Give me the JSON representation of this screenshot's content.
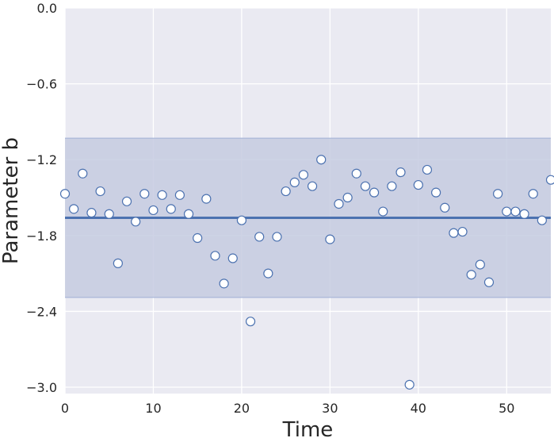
{
  "chart_data": {
    "type": "scatter",
    "xlabel": "Time",
    "ylabel": "Parameter b",
    "xlim": [
      0,
      55
    ],
    "ylim": [
      -3.05,
      0
    ],
    "x_ticks": [
      "0",
      "10",
      "20",
      "30",
      "40",
      "50"
    ],
    "x_tick_values": [
      0,
      10,
      20,
      30,
      40,
      50
    ],
    "y_ticks": [
      "0.0",
      "−0.6",
      "−1.2",
      "−1.8",
      "−2.4",
      "−3.0"
    ],
    "y_tick_values": [
      0.0,
      -0.6,
      -1.2,
      -1.8,
      -2.4,
      -3.0
    ],
    "grid": true,
    "mean_line": -1.66,
    "band": [
      -2.29,
      -1.03
    ],
    "series": [
      {
        "x": [
          0,
          1,
          2,
          3,
          4,
          5,
          6,
          7,
          8,
          9,
          10,
          11,
          12,
          13,
          14,
          15,
          16,
          17,
          18,
          19,
          20,
          21,
          22,
          23,
          24,
          25,
          26,
          27,
          28,
          29,
          30,
          31,
          32,
          33,
          34,
          35,
          36,
          37,
          38,
          39,
          40,
          41,
          42,
          43,
          44,
          45,
          46,
          47,
          48,
          49,
          50,
          51,
          52,
          53,
          54,
          55
        ],
        "y": [
          -1.47,
          -1.59,
          -1.31,
          -1.62,
          -1.45,
          -1.63,
          -2.02,
          -1.53,
          -1.69,
          -1.47,
          -1.6,
          -1.48,
          -1.59,
          -1.48,
          -1.63,
          -1.82,
          -1.51,
          -1.96,
          -2.18,
          -1.98,
          -1.68,
          -2.48,
          -1.81,
          -2.1,
          -1.81,
          -1.45,
          -1.38,
          -1.32,
          -1.41,
          -1.2,
          -1.83,
          -1.55,
          -1.5,
          -1.31,
          -1.41,
          -1.46,
          -1.61,
          -1.41,
          -1.3,
          -2.98,
          -1.4,
          -1.28,
          -1.46,
          -1.58,
          -1.78,
          -1.77,
          -2.11,
          -2.03,
          -2.17,
          -1.47,
          -1.61,
          -1.61,
          -1.63,
          -1.47,
          -1.68,
          -1.36
        ]
      }
    ],
    "colors": {
      "plot_bg": "#eaeaf2",
      "grid": "#ffffff",
      "band": "#c5cbe0",
      "band_edge": "#9fb0d5",
      "line": "#4c72b0",
      "marker_edge": "#4c72b0",
      "marker_fill": "#ffffff"
    }
  }
}
